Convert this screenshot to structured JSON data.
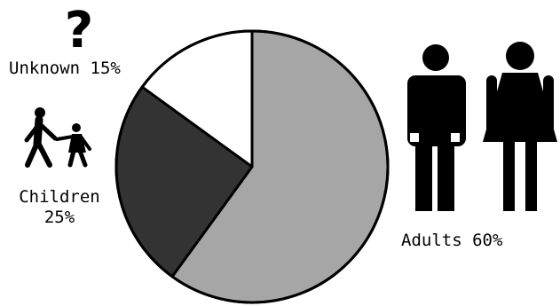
{
  "chart_data": {
    "type": "pie",
    "title": "",
    "slices": [
      {
        "label": "Adults",
        "value": 60,
        "color": "#a6a6a6"
      },
      {
        "label": "Children",
        "value": 25,
        "color": "#333333"
      },
      {
        "label": "Unknown",
        "value": 15,
        "color": "#ffffff"
      }
    ],
    "legend": "none",
    "start": "top",
    "direction": "clockwise"
  },
  "labels": {
    "unknown": "Unknown 15%",
    "children_line1": "Children",
    "children_line2": "25%",
    "adults": "Adults 60%",
    "unknown_symbol": "?"
  },
  "icons": {
    "adults": "man-and-woman-icon",
    "children": "children-walking-icon",
    "unknown": "question-mark-icon"
  }
}
